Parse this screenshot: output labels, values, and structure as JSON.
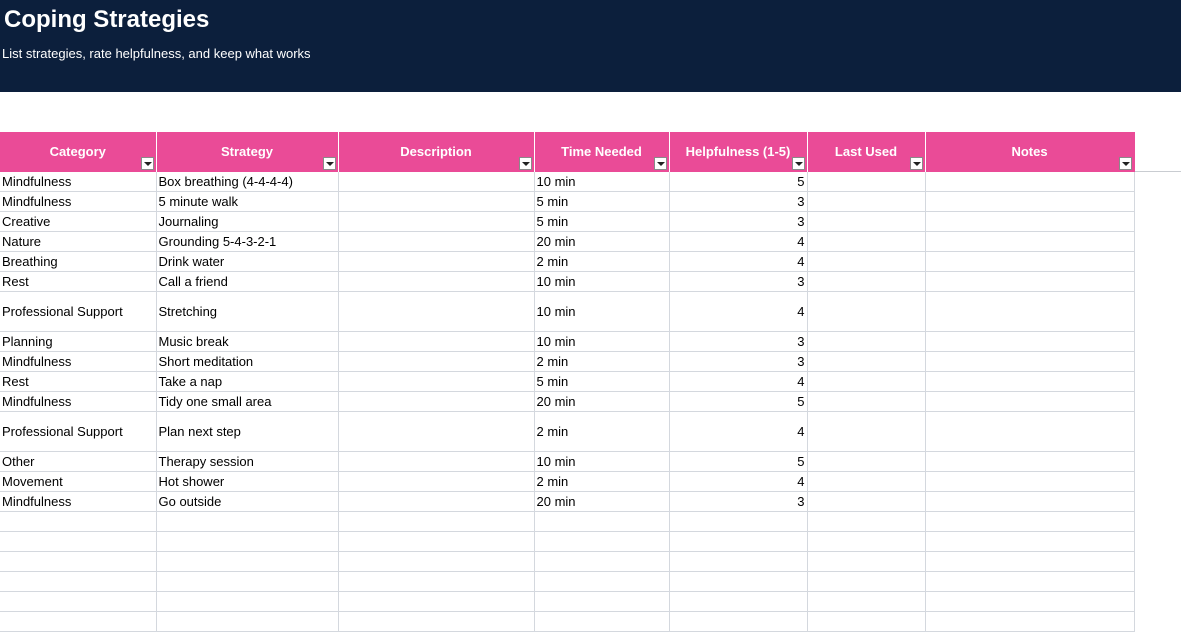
{
  "banner": {
    "title": "Coping Strategies",
    "subtitle": "List strategies, rate helpfulness, and keep what works"
  },
  "colors": {
    "banner_bg": "#0c1f3c",
    "header_bg": "#ea4b97",
    "gridline": "#d4d8de"
  },
  "table": {
    "columns": [
      "Category",
      "Strategy",
      "Description",
      "Time Needed",
      "Helpfulness (1-5)",
      "Last Used",
      "Notes"
    ],
    "rows": [
      {
        "category": "Mindfulness",
        "strategy": "Box breathing (4-4-4-4)",
        "description": "",
        "time": "10 min",
        "helpfulness": "5",
        "last_used": "",
        "notes": "",
        "tall": false
      },
      {
        "category": "Mindfulness",
        "strategy": "5 minute walk",
        "description": "",
        "time": "5 min",
        "helpfulness": "3",
        "last_used": "",
        "notes": "",
        "tall": false
      },
      {
        "category": "Creative",
        "strategy": "Journaling",
        "description": "",
        "time": "5 min",
        "helpfulness": "3",
        "last_used": "",
        "notes": "",
        "tall": false
      },
      {
        "category": "Nature",
        "strategy": "Grounding 5-4-3-2-1",
        "description": "",
        "time": "20 min",
        "helpfulness": "4",
        "last_used": "",
        "notes": "",
        "tall": false
      },
      {
        "category": "Breathing",
        "strategy": "Drink water",
        "description": "",
        "time": "2 min",
        "helpfulness": "4",
        "last_used": "",
        "notes": "",
        "tall": false
      },
      {
        "category": "Rest",
        "strategy": "Call a friend",
        "description": "",
        "time": "10 min",
        "helpfulness": "3",
        "last_used": "",
        "notes": "",
        "tall": false
      },
      {
        "category": "Professional Support",
        "strategy": "Stretching",
        "description": "",
        "time": "10 min",
        "helpfulness": "4",
        "last_used": "",
        "notes": "",
        "tall": true
      },
      {
        "category": "Planning",
        "strategy": "Music break",
        "description": "",
        "time": "10 min",
        "helpfulness": "3",
        "last_used": "",
        "notes": "",
        "tall": false
      },
      {
        "category": "Mindfulness",
        "strategy": "Short meditation",
        "description": "",
        "time": "2 min",
        "helpfulness": "3",
        "last_used": "",
        "notes": "",
        "tall": false
      },
      {
        "category": "Rest",
        "strategy": "Take a nap",
        "description": "",
        "time": "5 min",
        "helpfulness": "4",
        "last_used": "",
        "notes": "",
        "tall": false
      },
      {
        "category": "Mindfulness",
        "strategy": "Tidy one small area",
        "description": "",
        "time": "20 min",
        "helpfulness": "5",
        "last_used": "",
        "notes": "",
        "tall": false
      },
      {
        "category": "Professional Support",
        "strategy": "Plan next step",
        "description": "",
        "time": "2 min",
        "helpfulness": "4",
        "last_used": "",
        "notes": "",
        "tall": true
      },
      {
        "category": "Other",
        "strategy": "Therapy session",
        "description": "",
        "time": "10 min",
        "helpfulness": "5",
        "last_used": "",
        "notes": "",
        "tall": false
      },
      {
        "category": "Movement",
        "strategy": "Hot shower",
        "description": "",
        "time": "2 min",
        "helpfulness": "4",
        "last_used": "",
        "notes": "",
        "tall": false
      },
      {
        "category": "Mindfulness",
        "strategy": "Go outside",
        "description": "",
        "time": "20 min",
        "helpfulness": "3",
        "last_used": "",
        "notes": "",
        "tall": false
      }
    ],
    "empty_rows": 6
  }
}
